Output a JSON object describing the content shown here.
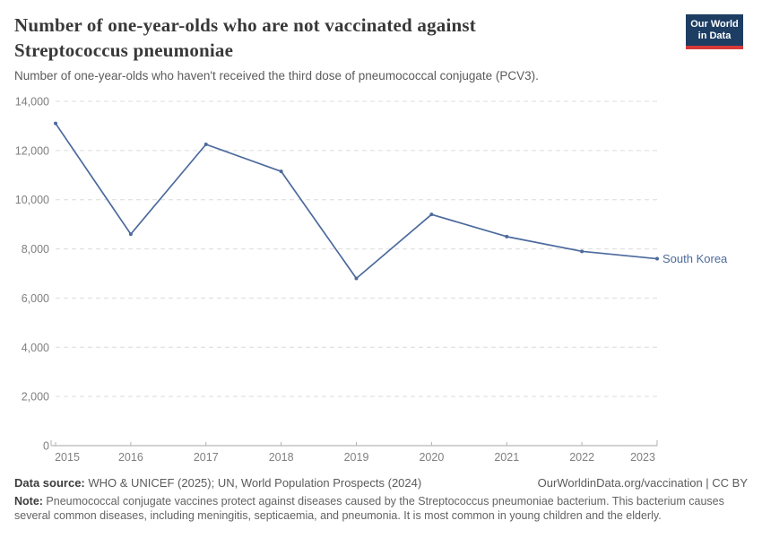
{
  "header": {
    "title_line1": "Number of one-year-olds who are not vaccinated against",
    "title_line2": "Streptococcus pneumoniae",
    "subtitle": "Number of one-year-olds who haven't received the third dose of pneumococcal conjugate (PCV3).",
    "logo": {
      "line1": "Our World",
      "line2": "in Data",
      "bg_color": "#1d3d63",
      "accent_color": "#d73a36"
    }
  },
  "chart_data": {
    "type": "line",
    "x": [
      2015,
      2016,
      2017,
      2018,
      2019,
      2020,
      2021,
      2022,
      2023
    ],
    "series": [
      {
        "name": "South Korea",
        "color": "#4c6a9c",
        "values": [
          13100,
          8600,
          12250,
          11150,
          6800,
          9400,
          8500,
          7900,
          7600
        ]
      }
    ],
    "end_label": "South Korea",
    "ylim": [
      0,
      14000
    ],
    "ytick_step": 2000,
    "grid": true,
    "legend_position": "end-of-line",
    "colors": {
      "grid": "#dcdcdc",
      "axis": "#a6a6a6",
      "tick": "#b3b3b3",
      "tick_label": "#7f7f7f"
    }
  },
  "footer": {
    "datasource_label": "Data source:",
    "datasource_text": " WHO & UNICEF (2025); UN, World Population Prospects (2024)",
    "rights_text": "OurWorldinData.org/vaccination | CC BY",
    "note_label": "Note:",
    "note_text": " Pneumococcal conjugate vaccines protect against diseases caused by the Streptococcus pneumoniae bacterium. This bacterium causes several common diseases, including meningitis, septicaemia, and pneumonia. It is most common in young children and the elderly."
  }
}
